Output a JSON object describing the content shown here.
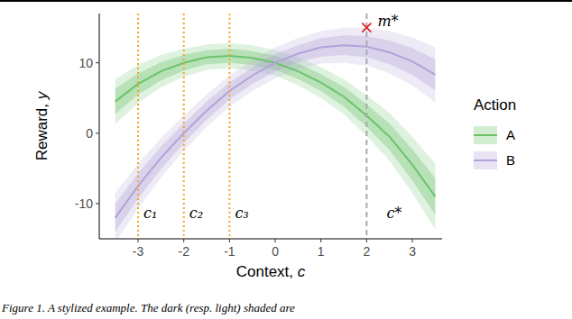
{
  "chart_data": {
    "type": "line",
    "x_label": "Context, c",
    "y_label": "Reward, y",
    "legend_title": "Action",
    "caption": "Figure 1. A stylized example. The dark (resp. light) shaded are",
    "xlim": [
      -3.85,
      3.65
    ],
    "ylim": [
      -15,
      17
    ],
    "xticks": [
      -3,
      -2,
      -1,
      0,
      1,
      2,
      3
    ],
    "yticks": [
      -10,
      0,
      10
    ],
    "legend": "right",
    "x": [
      -3.5,
      -3,
      -2.5,
      -2,
      -1.5,
      -1,
      -0.5,
      0,
      0.5,
      1,
      1.5,
      2,
      2.5,
      3,
      3.5
    ],
    "series": [
      {
        "name": "A",
        "color": "#6cc36c",
        "values": [
          4.5,
          7,
          8.8,
          10,
          10.8,
          11,
          10.7,
          10,
          8.8,
          7.2,
          5.2,
          2.5,
          -0.5,
          -4.5,
          -9
        ],
        "inner_lower": [
          2.7,
          5.5,
          7.5,
          8.9,
          9.8,
          10,
          9.7,
          9,
          7.7,
          6,
          3.8,
          0.9,
          -2.4,
          -6.7,
          -11.6
        ],
        "inner_upper": [
          6.3,
          8.5,
          10.1,
          11.1,
          11.8,
          12,
          11.7,
          11,
          9.9,
          8.4,
          6.6,
          4.1,
          1.4,
          -2.3,
          -6.4
        ],
        "outer_lower": [
          1.3,
          4.3,
          6.5,
          8,
          9,
          9.2,
          8.9,
          8.2,
          6.8,
          5,
          2.7,
          -0.4,
          -3.9,
          -8.5,
          -13.7
        ],
        "outer_upper": [
          7.7,
          9.7,
          11.1,
          12,
          12.6,
          12.8,
          12.5,
          11.8,
          10.8,
          9.4,
          7.7,
          5.4,
          2.9,
          -0.5,
          -4.3
        ]
      },
      {
        "name": "B",
        "color": "#b2a3d8",
        "values": [
          -12,
          -7.5,
          -3.5,
          0,
          3.2,
          6,
          8.2,
          10,
          11.3,
          12.2,
          12.5,
          12.3,
          11.5,
          10.2,
          8.3
        ],
        "inner_lower": [
          -14,
          -9.3,
          -5.1,
          -1.4,
          1.9,
          4.8,
          7,
          8.8,
          10.1,
          10.9,
          11.1,
          10.8,
          9.8,
          8.3,
          6.1
        ],
        "inner_upper": [
          -10,
          -5.7,
          -1.9,
          1.4,
          4.5,
          7.2,
          9.4,
          11.2,
          12.5,
          13.5,
          13.9,
          13.8,
          13.2,
          12.1,
          10.5
        ],
        "outer_lower": [
          -15.5,
          -10.7,
          -6.3,
          -2.5,
          0.9,
          3.8,
          6,
          7.8,
          9.1,
          9.9,
          10,
          9.6,
          8.5,
          6.8,
          4.4
        ],
        "outer_upper": [
          -8.5,
          -4.3,
          -0.7,
          2.5,
          5.5,
          8.2,
          10.4,
          12.2,
          13.5,
          14.5,
          15,
          15,
          14.5,
          13.6,
          12.2
        ]
      }
    ],
    "annotations": [
      {
        "type": "vline",
        "text": "c₁",
        "x": -3,
        "line_style": "dotted",
        "color": "#f5a623"
      },
      {
        "type": "vline",
        "text": "c₂",
        "x": -2,
        "line_style": "dotted",
        "color": "#f5a623"
      },
      {
        "type": "vline",
        "text": "c₃",
        "x": -1,
        "line_style": "dotted",
        "color": "#f5a623"
      },
      {
        "type": "vline",
        "text": "c*",
        "x": 2,
        "line_style": "dashed",
        "color": "#aaaaaa"
      },
      {
        "type": "point",
        "text": "m*",
        "x": 2,
        "y": 15,
        "marker": "x",
        "color": "#e41a1c"
      }
    ]
  }
}
